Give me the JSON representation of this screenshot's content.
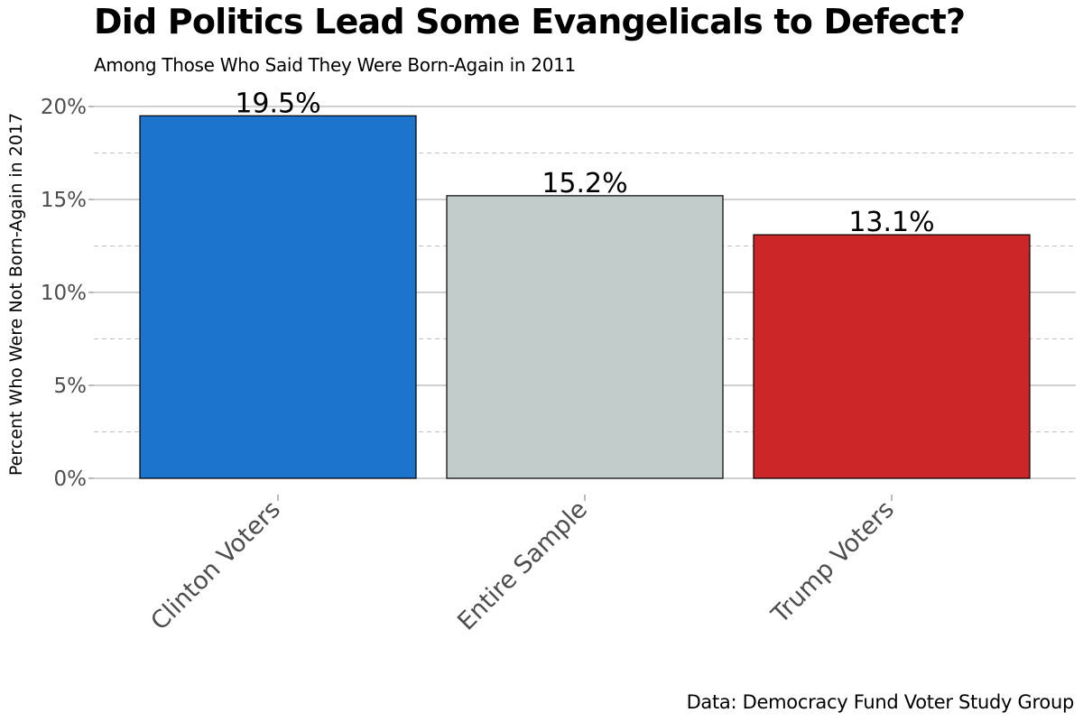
{
  "chart_data": {
    "type": "bar",
    "title": "Did Politics Lead Some Evangelicals to Defect?",
    "subtitle": "Among Those Who Said They Were Born-Again in 2011",
    "caption": "Data: Democracy Fund Voter Study Group",
    "xlabel": "",
    "ylabel": "Percent Who Were Not Born-Again in 2017",
    "categories": [
      "Clinton Voters",
      "Entire Sample",
      "Trump Voters"
    ],
    "values": [
      19.5,
      15.2,
      13.1
    ],
    "data_labels": [
      "19.5%",
      "15.2%",
      "13.1%"
    ],
    "colors": [
      "#1c74cc",
      "#c1cccb",
      "#cc2628"
    ],
    "ylim": [
      0,
      20
    ],
    "y_ticks": [
      0,
      5,
      10,
      15,
      20
    ],
    "y_tick_labels": [
      "0%",
      "5%",
      "10%",
      "15%",
      "20%"
    ],
    "y_minor_ticks": [
      2.5,
      7.5,
      12.5,
      17.5
    ],
    "grid": true,
    "legend": "none"
  }
}
